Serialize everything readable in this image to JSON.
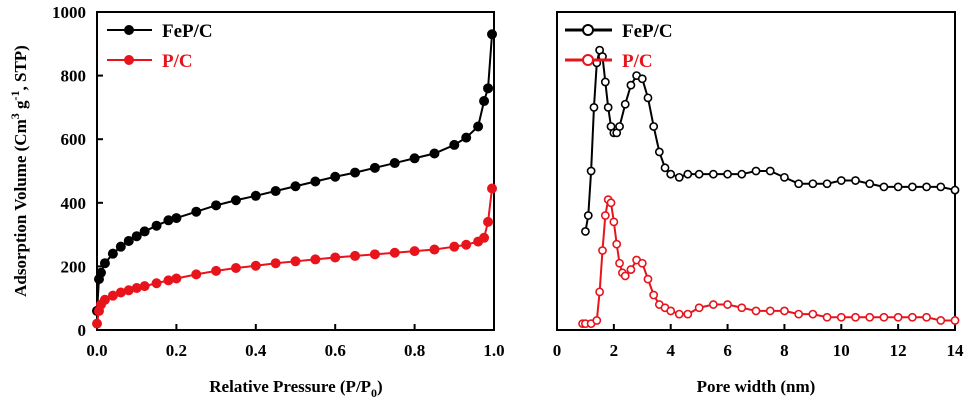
{
  "chart_data": [
    {
      "type": "line",
      "xlabel_main": "Relative Pressure (P/P",
      "xlabel_sub": "0",
      "xlabel_end": ")",
      "ylabel_parts": [
        "Adsorption Volume (Cm",
        "3",
        " g",
        "-1",
        ", STP)"
      ],
      "xlim": [
        0,
        1.0
      ],
      "ylim": [
        0,
        1000
      ],
      "xticks": [
        "0.0",
        "0.2",
        "0.4",
        "0.6",
        "0.8",
        "1.0"
      ],
      "yticks": [
        "0",
        "200",
        "400",
        "600",
        "800",
        "1000"
      ],
      "legend_position": "top-left",
      "series": [
        {
          "name": "FeP/C",
          "color": "#000000",
          "marker": "filled-circle",
          "x": [
            0.0,
            0.005,
            0.01,
            0.02,
            0.04,
            0.06,
            0.08,
            0.1,
            0.12,
            0.15,
            0.18,
            0.2,
            0.25,
            0.3,
            0.35,
            0.4,
            0.45,
            0.5,
            0.55,
            0.6,
            0.65,
            0.7,
            0.75,
            0.8,
            0.85,
            0.9,
            0.93,
            0.96,
            0.975,
            0.985,
            0.995
          ],
          "y": [
            60,
            160,
            180,
            210,
            240,
            262,
            280,
            295,
            310,
            328,
            345,
            352,
            372,
            392,
            408,
            422,
            437,
            452,
            467,
            482,
            495,
            510,
            525,
            540,
            555,
            582,
            605,
            640,
            720,
            760,
            930
          ]
        },
        {
          "name": "P/C",
          "color": "#e8141c",
          "marker": "filled-circle",
          "x": [
            0.0,
            0.005,
            0.01,
            0.02,
            0.04,
            0.06,
            0.08,
            0.1,
            0.12,
            0.15,
            0.18,
            0.2,
            0.25,
            0.3,
            0.35,
            0.4,
            0.45,
            0.5,
            0.55,
            0.6,
            0.65,
            0.7,
            0.75,
            0.8,
            0.85,
            0.9,
            0.93,
            0.96,
            0.975,
            0.985,
            0.995
          ],
          "y": [
            20,
            60,
            80,
            95,
            108,
            118,
            125,
            132,
            138,
            147,
            156,
            162,
            175,
            186,
            195,
            202,
            210,
            216,
            222,
            228,
            233,
            238,
            243,
            248,
            253,
            262,
            268,
            278,
            290,
            340,
            445
          ]
        }
      ]
    },
    {
      "type": "line",
      "xlabel": "Pore width (nm)",
      "xlim": [
        0,
        14
      ],
      "xticks": [
        "0",
        "2",
        "4",
        "6",
        "8",
        "10",
        "12",
        "14"
      ],
      "y_axis_labels": false,
      "legend_position": "top-left",
      "series": [
        {
          "name": "FeP/C",
          "color": "#000000",
          "marker": "open-circle",
          "x": [
            1.0,
            1.1,
            1.2,
            1.3,
            1.4,
            1.5,
            1.6,
            1.7,
            1.8,
            1.9,
            2.0,
            2.1,
            2.2,
            2.4,
            2.6,
            2.8,
            3.0,
            3.2,
            3.4,
            3.6,
            3.8,
            4.0,
            4.3,
            4.6,
            5.0,
            5.5,
            6.0,
            6.5,
            7.0,
            7.5,
            8.0,
            8.5,
            9.0,
            9.5,
            10.0,
            10.5,
            11.0,
            11.5,
            12.0,
            12.5,
            13.0,
            13.5,
            14.0
          ],
          "y": [
            0.31,
            0.36,
            0.5,
            0.7,
            0.84,
            0.88,
            0.86,
            0.78,
            0.7,
            0.64,
            0.62,
            0.62,
            0.64,
            0.71,
            0.77,
            0.8,
            0.79,
            0.73,
            0.64,
            0.56,
            0.51,
            0.49,
            0.48,
            0.49,
            0.49,
            0.49,
            0.49,
            0.49,
            0.5,
            0.5,
            0.48,
            0.46,
            0.46,
            0.46,
            0.47,
            0.47,
            0.46,
            0.45,
            0.45,
            0.45,
            0.45,
            0.45,
            0.44
          ]
        },
        {
          "name": "P/C",
          "color": "#e8141c",
          "marker": "open-circle",
          "x": [
            0.9,
            1.0,
            1.2,
            1.4,
            1.5,
            1.6,
            1.7,
            1.8,
            1.9,
            2.0,
            2.1,
            2.2,
            2.3,
            2.4,
            2.6,
            2.8,
            3.0,
            3.2,
            3.4,
            3.6,
            3.8,
            4.0,
            4.3,
            4.6,
            5.0,
            5.5,
            6.0,
            6.5,
            7.0,
            7.5,
            8.0,
            8.5,
            9.0,
            9.5,
            10.0,
            10.5,
            11.0,
            11.5,
            12.0,
            12.5,
            13.0,
            13.5,
            14.0
          ],
          "y": [
            0.02,
            0.02,
            0.02,
            0.03,
            0.12,
            0.25,
            0.36,
            0.41,
            0.4,
            0.34,
            0.27,
            0.21,
            0.18,
            0.17,
            0.19,
            0.22,
            0.21,
            0.16,
            0.11,
            0.08,
            0.07,
            0.06,
            0.05,
            0.05,
            0.07,
            0.08,
            0.08,
            0.07,
            0.06,
            0.06,
            0.06,
            0.05,
            0.05,
            0.04,
            0.04,
            0.04,
            0.04,
            0.04,
            0.04,
            0.04,
            0.04,
            0.03,
            0.03
          ]
        }
      ]
    }
  ]
}
